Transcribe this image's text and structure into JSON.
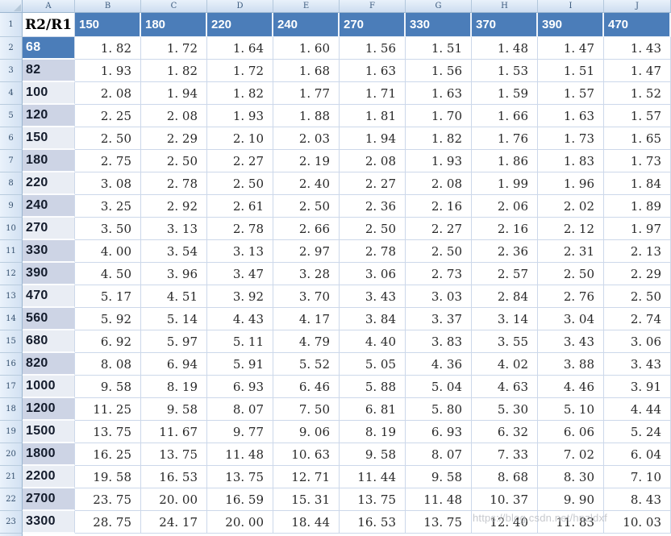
{
  "watermark": "https://blog.csdn.net/hnzldxf",
  "colors": {
    "header_fill": "#4b7db9",
    "band_dark": "#cdd4e5",
    "band_light": "#e9edf4",
    "gridline": "#ccd8ea",
    "selected_row_label_fill": "#4b7db9"
  },
  "grid": {
    "column_letters": [
      "A",
      "B",
      "C",
      "D",
      "E",
      "F",
      "G",
      "H",
      "I",
      "J"
    ],
    "row_numbers": [
      1,
      2,
      3,
      4,
      5,
      6,
      7,
      8,
      9,
      10,
      11,
      12,
      13,
      14,
      15,
      16,
      17,
      18,
      19,
      20,
      21,
      22,
      23
    ]
  },
  "table": {
    "corner_header": "R2/R1",
    "column_headers": [
      "150",
      "180",
      "220",
      "240",
      "270",
      "330",
      "370",
      "390",
      "470"
    ],
    "rows": [
      {
        "label": "68",
        "band": "selected",
        "values": [
          "1.82",
          "1.72",
          "1.64",
          "1.60",
          "1.56",
          "1.51",
          "1.48",
          "1.47",
          "1.43"
        ]
      },
      {
        "label": "82",
        "band": "dark",
        "values": [
          "1.93",
          "1.82",
          "1.72",
          "1.68",
          "1.63",
          "1.56",
          "1.53",
          "1.51",
          "1.47"
        ]
      },
      {
        "label": "100",
        "band": "light",
        "values": [
          "2.08",
          "1.94",
          "1.82",
          "1.77",
          "1.71",
          "1.63",
          "1.59",
          "1.57",
          "1.52"
        ]
      },
      {
        "label": "120",
        "band": "dark",
        "values": [
          "2.25",
          "2.08",
          "1.93",
          "1.88",
          "1.81",
          "1.70",
          "1.66",
          "1.63",
          "1.57"
        ]
      },
      {
        "label": "150",
        "band": "light",
        "values": [
          "2.50",
          "2.29",
          "2.10",
          "2.03",
          "1.94",
          "1.82",
          "1.76",
          "1.73",
          "1.65"
        ]
      },
      {
        "label": "180",
        "band": "dark",
        "values": [
          "2.75",
          "2.50",
          "2.27",
          "2.19",
          "2.08",
          "1.93",
          "1.86",
          "1.83",
          "1.73"
        ]
      },
      {
        "label": "220",
        "band": "light",
        "values": [
          "3.08",
          "2.78",
          "2.50",
          "2.40",
          "2.27",
          "2.08",
          "1.99",
          "1.96",
          "1.84"
        ]
      },
      {
        "label": "240",
        "band": "dark",
        "values": [
          "3.25",
          "2.92",
          "2.61",
          "2.50",
          "2.36",
          "2.16",
          "2.06",
          "2.02",
          "1.89"
        ]
      },
      {
        "label": "270",
        "band": "light",
        "values": [
          "3.50",
          "3.13",
          "2.78",
          "2.66",
          "2.50",
          "2.27",
          "2.16",
          "2.12",
          "1.97"
        ]
      },
      {
        "label": "330",
        "band": "dark",
        "values": [
          "4.00",
          "3.54",
          "3.13",
          "2.97",
          "2.78",
          "2.50",
          "2.36",
          "2.31",
          "2.13"
        ]
      },
      {
        "label": "390",
        "band": "dark",
        "values": [
          "4.50",
          "3.96",
          "3.47",
          "3.28",
          "3.06",
          "2.73",
          "2.57",
          "2.50",
          "2.29"
        ]
      },
      {
        "label": "470",
        "band": "light",
        "values": [
          "5.17",
          "4.51",
          "3.92",
          "3.70",
          "3.43",
          "3.03",
          "2.84",
          "2.76",
          "2.50"
        ]
      },
      {
        "label": "560",
        "band": "dark",
        "values": [
          "5.92",
          "5.14",
          "4.43",
          "4.17",
          "3.84",
          "3.37",
          "3.14",
          "3.04",
          "2.74"
        ]
      },
      {
        "label": "680",
        "band": "light",
        "values": [
          "6.92",
          "5.97",
          "5.11",
          "4.79",
          "4.40",
          "3.83",
          "3.55",
          "3.43",
          "3.06"
        ]
      },
      {
        "label": "820",
        "band": "dark",
        "values": [
          "8.08",
          "6.94",
          "5.91",
          "5.52",
          "5.05",
          "4.36",
          "4.02",
          "3.88",
          "3.43"
        ]
      },
      {
        "label": "1000",
        "band": "light",
        "values": [
          "9.58",
          "8.19",
          "6.93",
          "6.46",
          "5.88",
          "5.04",
          "4.63",
          "4.46",
          "3.91"
        ]
      },
      {
        "label": "1200",
        "band": "dark",
        "values": [
          "11.25",
          "9.58",
          "8.07",
          "7.50",
          "6.81",
          "5.80",
          "5.30",
          "5.10",
          "4.44"
        ]
      },
      {
        "label": "1500",
        "band": "light",
        "values": [
          "13.75",
          "11.67",
          "9.77",
          "9.06",
          "8.19",
          "6.93",
          "6.32",
          "6.06",
          "5.24"
        ]
      },
      {
        "label": "1800",
        "band": "dark",
        "values": [
          "16.25",
          "13.75",
          "11.48",
          "10.63",
          "9.58",
          "8.07",
          "7.33",
          "7.02",
          "6.04"
        ]
      },
      {
        "label": "2200",
        "band": "light",
        "values": [
          "19.58",
          "16.53",
          "13.75",
          "12.71",
          "11.44",
          "9.58",
          "8.68",
          "8.30",
          "7.10"
        ]
      },
      {
        "label": "2700",
        "band": "dark",
        "values": [
          "23.75",
          "20.00",
          "16.59",
          "15.31",
          "13.75",
          "11.48",
          "10.37",
          "9.90",
          "8.43"
        ]
      },
      {
        "label": "3300",
        "band": "light",
        "values": [
          "28.75",
          "24.17",
          "20.00",
          "18.44",
          "16.53",
          "13.75",
          "12.40",
          "11.83",
          "10.03"
        ]
      }
    ]
  }
}
